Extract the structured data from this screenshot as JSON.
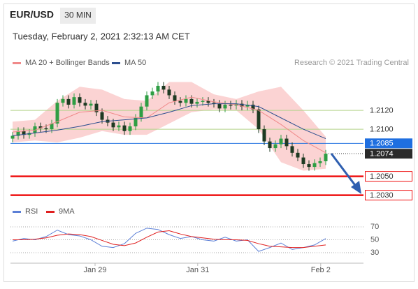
{
  "header": {
    "symbol": "EUR/USD",
    "timeframe": "30 MIN",
    "datetime": "Tuesday, February 2, 2021 2:32:13 AM CET",
    "source": "Research © 2021 Trading Central"
  },
  "chart_data": [
    {
      "type": "candlestick",
      "up_color": "#2f9e44",
      "down_color": "#1e3a22",
      "band_color": "#fbd3d3",
      "xlim": [
        -0.375,
        62.75
      ],
      "ylim": [
        1.2026,
        1.2163
      ],
      "open": [
        1.209,
        1.2093,
        1.2098,
        1.2094,
        1.2096,
        1.2103,
        1.2101,
        1.21,
        1.2106,
        1.2128,
        1.2132,
        1.2126,
        1.2134,
        1.2128,
        1.2125,
        1.2127,
        1.2118,
        1.211,
        1.2107,
        1.2102,
        1.2104,
        1.2098,
        1.2103,
        1.2112,
        1.2124,
        1.2136,
        1.214,
        1.2146,
        1.2142,
        1.2136,
        1.213,
        1.2128,
        1.2132,
        1.2127,
        1.2129,
        1.213,
        1.2128,
        1.2127,
        1.2122,
        1.2126,
        1.2125,
        1.2127,
        1.2124,
        1.2126,
        1.2121,
        1.21,
        1.2087,
        1.208,
        1.2084,
        1.209,
        1.2082,
        1.2075,
        1.207,
        1.2063,
        1.206,
        1.2064,
        1.2066
      ],
      "high": [
        1.2097,
        1.2102,
        1.2102,
        1.21,
        1.2107,
        1.2107,
        1.2105,
        1.211,
        1.2132,
        1.2136,
        1.2136,
        1.2138,
        1.2138,
        1.2132,
        1.2131,
        1.2131,
        1.2122,
        1.2114,
        1.2111,
        1.2108,
        1.2108,
        1.2107,
        1.2116,
        1.2128,
        1.214,
        1.2144,
        1.215,
        1.215,
        1.2146,
        1.214,
        1.2134,
        1.2136,
        1.2136,
        1.2133,
        1.2134,
        1.2134,
        1.2132,
        1.2131,
        1.213,
        1.213,
        1.2131,
        1.2131,
        1.213,
        1.213,
        1.2125,
        1.2104,
        1.2091,
        1.2088,
        1.2094,
        1.2094,
        1.2086,
        1.2079,
        1.2074,
        1.2067,
        1.2068,
        1.207,
        1.2078
      ],
      "low": [
        1.2086,
        1.2089,
        1.209,
        1.209,
        1.2092,
        1.2097,
        1.2096,
        1.2096,
        1.2102,
        1.2124,
        1.2122,
        1.2122,
        1.2124,
        1.2121,
        1.2121,
        1.2114,
        1.2106,
        1.2103,
        1.2098,
        1.2098,
        1.2094,
        1.2094,
        1.2099,
        1.2108,
        1.212,
        1.2132,
        1.2136,
        1.2138,
        1.2132,
        1.2126,
        1.2124,
        1.2124,
        1.2123,
        1.2123,
        1.2125,
        1.2124,
        1.2123,
        1.2118,
        1.2118,
        1.2121,
        1.2121,
        1.212,
        1.212,
        1.2117,
        1.2096,
        1.2083,
        1.2076,
        1.2076,
        1.208,
        1.2078,
        1.2071,
        1.2066,
        1.2059,
        1.2056,
        1.2056,
        1.206,
        1.2062
      ],
      "close": [
        1.2093,
        1.2098,
        1.2094,
        1.2096,
        1.2103,
        1.2101,
        1.21,
        1.2106,
        1.2128,
        1.2132,
        1.2126,
        1.2134,
        1.2128,
        1.2125,
        1.2127,
        1.2118,
        1.211,
        1.2107,
        1.2102,
        1.2104,
        1.2098,
        1.2103,
        1.2112,
        1.2124,
        1.2136,
        1.214,
        1.2146,
        1.2142,
        1.2136,
        1.213,
        1.2128,
        1.2132,
        1.2127,
        1.2129,
        1.213,
        1.2128,
        1.2127,
        1.2122,
        1.2126,
        1.2125,
        1.2127,
        1.2124,
        1.2126,
        1.2121,
        1.21,
        1.2087,
        1.208,
        1.2084,
        1.209,
        1.2082,
        1.2075,
        1.207,
        1.2063,
        1.206,
        1.2064,
        1.2066,
        1.2074
      ],
      "series": [
        {
          "name": "MA 20 + Bollinger Bands",
          "color": "#f08a8a",
          "x": [
            0,
            4,
            8,
            12,
            16,
            20,
            24,
            28,
            32,
            36,
            40,
            44,
            48,
            52,
            56
          ],
          "values": [
            1.2097,
            1.2099,
            1.2108,
            1.2118,
            1.212,
            1.2113,
            1.2112,
            1.2128,
            1.2134,
            1.2129,
            1.2126,
            1.212,
            1.2105,
            1.2088,
            1.2075
          ],
          "upper": [
            1.2108,
            1.211,
            1.213,
            1.2145,
            1.2142,
            1.2132,
            1.213,
            1.215,
            1.215,
            1.2137,
            1.2132,
            1.214,
            1.2145,
            1.212,
            1.2092
          ],
          "lower": [
            1.2086,
            1.2088,
            1.2086,
            1.2091,
            1.2098,
            1.2094,
            1.2094,
            1.2106,
            1.2118,
            1.2121,
            1.212,
            1.21,
            1.2065,
            1.2056,
            1.2058
          ]
        },
        {
          "name": "MA 50",
          "color": "#2d4f8f",
          "x": [
            0,
            4,
            8,
            12,
            16,
            20,
            24,
            28,
            32,
            36,
            40,
            44,
            48,
            52,
            56
          ],
          "values": [
            1.2093,
            1.2096,
            1.2099,
            1.2103,
            1.2108,
            1.211,
            1.2112,
            1.2118,
            1.2125,
            1.2127,
            1.2127,
            1.2124,
            1.2112,
            1.21,
            1.209
          ]
        }
      ],
      "levels": [
        {
          "value": 1.212,
          "label": "1.2120",
          "color": "#b3d38a",
          "box": "none"
        },
        {
          "value": 1.21,
          "label": "1.2100",
          "color": "#b3d38a",
          "box": "none"
        },
        {
          "value": 1.2085,
          "label": "1.2085",
          "color": "#1f6fe0",
          "box": "filled"
        },
        {
          "value": 1.2074,
          "label": "1.2074",
          "color": "#2b2b2b",
          "box": "filled"
        },
        {
          "value": 1.205,
          "label": "1.2050",
          "color": "#ee1111",
          "box": "outline"
        },
        {
          "value": 1.203,
          "label": "1.2030",
          "color": "#ee1111",
          "box": "outline"
        }
      ]
    },
    {
      "type": "line",
      "xlim": [
        -0.375,
        62.75
      ],
      "ylim": [
        20,
        80
      ],
      "yticks": [
        30,
        50,
        70
      ],
      "xticks": [
        {
          "value": 14.75,
          "label": "Jan 29"
        },
        {
          "value": 33.1,
          "label": "Jan 31"
        },
        {
          "value": 55.1,
          "label": "Feb 2"
        }
      ],
      "series": [
        {
          "name": "RSI",
          "color": "#5b7fd6",
          "x": [
            0,
            2,
            4,
            6,
            8,
            10,
            12,
            14,
            16,
            18,
            20,
            22,
            24,
            26,
            28,
            30,
            32,
            34,
            36,
            38,
            40,
            42,
            44,
            46,
            48,
            50,
            52,
            54,
            56
          ],
          "values": [
            48,
            52,
            50,
            55,
            65,
            58,
            56,
            50,
            40,
            38,
            44,
            60,
            68,
            66,
            58,
            52,
            55,
            50,
            48,
            54,
            48,
            50,
            32,
            38,
            45,
            35,
            38,
            42,
            52
          ]
        },
        {
          "name": "9MA",
          "color": "#e02020",
          "x": [
            0,
            2,
            4,
            6,
            8,
            10,
            12,
            14,
            16,
            18,
            20,
            22,
            24,
            26,
            28,
            30,
            32,
            34,
            36,
            38,
            40,
            42,
            44,
            46,
            48,
            50,
            52,
            54,
            56
          ],
          "values": [
            50,
            50,
            51,
            53,
            57,
            59,
            58,
            55,
            49,
            43,
            41,
            45,
            54,
            62,
            64,
            59,
            55,
            53,
            51,
            50,
            50,
            49,
            44,
            40,
            39,
            38,
            38,
            40,
            42
          ]
        }
      ]
    }
  ]
}
